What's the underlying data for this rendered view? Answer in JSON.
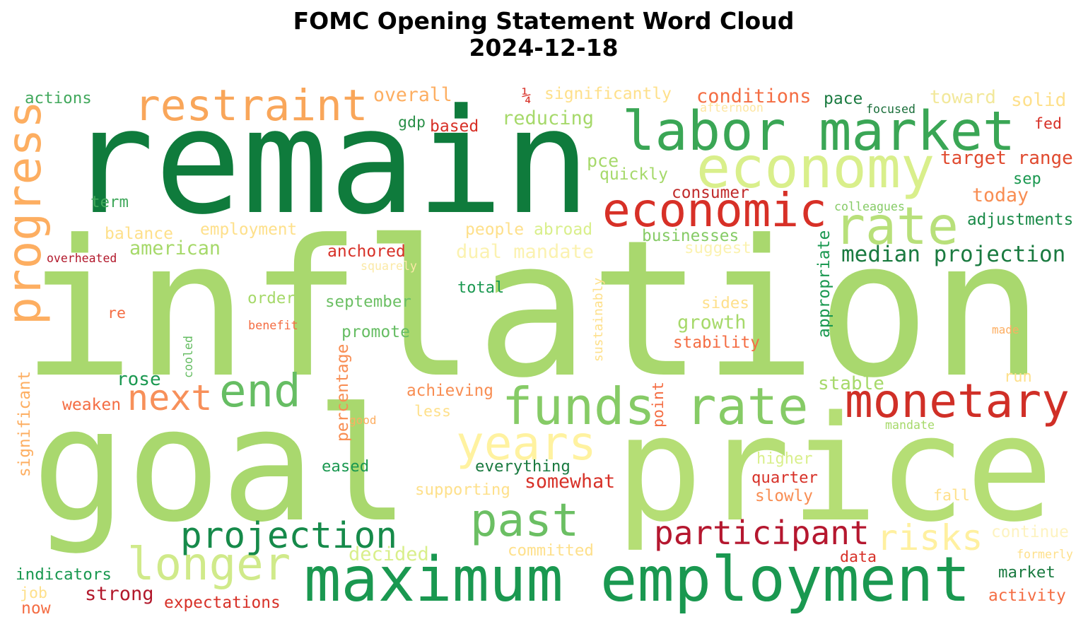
{
  "title": "FOMC Opening Statement Word Cloud",
  "subtitle": "2024-12-18",
  "words": [
    {
      "text": "inflation",
      "color": "#a9d86e"
    },
    {
      "text": "remain",
      "color": "#0f7b3c"
    },
    {
      "text": "goal",
      "color": "#a9d86e"
    },
    {
      "text": "price",
      "color": "#b5de75"
    },
    {
      "text": "maximum employment",
      "color": "#1a9850"
    },
    {
      "text": "labor market",
      "color": "#3aa655"
    },
    {
      "text": "economy",
      "color": "#d9ef8b"
    },
    {
      "text": "economic",
      "color": "#d73027"
    },
    {
      "text": "rate",
      "color": "#b8e07a"
    },
    {
      "text": "funds rate",
      "color": "#86cb66"
    },
    {
      "text": "monetary",
      "color": "#d02f27"
    },
    {
      "text": "years",
      "color": "#fff2a0"
    },
    {
      "text": "past",
      "color": "#6bbf63"
    },
    {
      "text": "restraint",
      "color": "#f9a65a"
    },
    {
      "text": "progress",
      "color": "#fdae61"
    },
    {
      "text": "end",
      "color": "#66bd63"
    },
    {
      "text": "next",
      "color": "#f7905a"
    },
    {
      "text": "longer",
      "color": "#d0ea8a"
    },
    {
      "text": "projection",
      "color": "#168a4a"
    },
    {
      "text": "participant",
      "color": "#b5172f"
    },
    {
      "text": "risks",
      "color": "#fff0a0"
    },
    {
      "text": "median projection",
      "color": "#1a7a40"
    },
    {
      "text": "target range",
      "color": "#e04a2f"
    },
    {
      "text": "conditions",
      "color": "#f46d43"
    },
    {
      "text": "overall",
      "color": "#fdae61"
    },
    {
      "text": "significantly",
      "color": "#fee08b"
    },
    {
      "text": "¼",
      "color": "#d73027"
    },
    {
      "text": "reducing",
      "color": "#a6d96a"
    },
    {
      "text": "actions",
      "color": "#41a85c"
    },
    {
      "text": "afternoon",
      "color": "#fee6a0"
    },
    {
      "text": "pace",
      "color": "#1a7a40"
    },
    {
      "text": "focused",
      "color": "#1a6e3a"
    },
    {
      "text": "toward",
      "color": "#f2e89a"
    },
    {
      "text": "solid",
      "color": "#fee08b"
    },
    {
      "text": "fed",
      "color": "#d73027"
    },
    {
      "text": "gdp",
      "color": "#2a9048"
    },
    {
      "text": "based",
      "color": "#d73027"
    },
    {
      "text": "pce",
      "color": "#a6d96a"
    },
    {
      "text": "quickly",
      "color": "#a6d96a"
    },
    {
      "text": "sep",
      "color": "#1a9850"
    },
    {
      "text": "today",
      "color": "#f88d52"
    },
    {
      "text": "term",
      "color": "#41a85c"
    },
    {
      "text": "consumer",
      "color": "#c02a2a"
    },
    {
      "text": "colleagues",
      "color": "#86cb66"
    },
    {
      "text": "adjustments",
      "color": "#1a8a48"
    },
    {
      "text": "balance",
      "color": "#fee08b"
    },
    {
      "text": "employment",
      "color": "#fee08b"
    },
    {
      "text": "people",
      "color": "#fee08b"
    },
    {
      "text": "abroad",
      "color": "#d9ef8b"
    },
    {
      "text": "businesses",
      "color": "#86cb66"
    },
    {
      "text": "appropriate",
      "color": "#1a9850"
    },
    {
      "text": "american",
      "color": "#a6d96a"
    },
    {
      "text": "overheated",
      "color": "#b2182b"
    },
    {
      "text": "anchored",
      "color": "#d73027"
    },
    {
      "text": "dual mandate",
      "color": "#fbf2b0"
    },
    {
      "text": "suggest",
      "color": "#fbf2b0"
    },
    {
      "text": "squarely",
      "color": "#fbe9a6"
    },
    {
      "text": "total",
      "color": "#1a9850"
    },
    {
      "text": "order",
      "color": "#a6d96a"
    },
    {
      "text": "september",
      "color": "#6bbf63"
    },
    {
      "text": "sides",
      "color": "#fee08b"
    },
    {
      "text": "sustainably",
      "color": "#fee08b"
    },
    {
      "text": "re",
      "color": "#f46d43"
    },
    {
      "text": "benefit",
      "color": "#f46d43"
    },
    {
      "text": "growth",
      "color": "#a6d96a"
    },
    {
      "text": "promote",
      "color": "#66bd63"
    },
    {
      "text": "stability",
      "color": "#f46d43"
    },
    {
      "text": "made",
      "color": "#fdae61"
    },
    {
      "text": "cooled",
      "color": "#66bd63"
    },
    {
      "text": "percentage",
      "color": "#f88d52"
    },
    {
      "text": "significant",
      "color": "#fdae61"
    },
    {
      "text": "rose",
      "color": "#1a9850"
    },
    {
      "text": "run",
      "color": "#fee08b"
    },
    {
      "text": "stable",
      "color": "#a6d96a"
    },
    {
      "text": "point",
      "color": "#f46d43"
    },
    {
      "text": "achieving",
      "color": "#f88d52"
    },
    {
      "text": "weaken",
      "color": "#f46d43"
    },
    {
      "text": "less",
      "color": "#fee08b"
    },
    {
      "text": "good",
      "color": "#fdae61"
    },
    {
      "text": "mandate",
      "color": "#a6d96a"
    },
    {
      "text": "higher",
      "color": "#d9ef8b"
    },
    {
      "text": "eased",
      "color": "#1a9850"
    },
    {
      "text": "everything",
      "color": "#1a7a40"
    },
    {
      "text": "somewhat",
      "color": "#d73027"
    },
    {
      "text": "quarter",
      "color": "#d73027"
    },
    {
      "text": "supporting",
      "color": "#fee08b"
    },
    {
      "text": "slowly",
      "color": "#f88d52"
    },
    {
      "text": "fall",
      "color": "#fee08b"
    },
    {
      "text": "continue",
      "color": "#fdf3c0"
    },
    {
      "text": "decided",
      "color": "#d9ef8b"
    },
    {
      "text": "committed",
      "color": "#fee08b"
    },
    {
      "text": "formerly",
      "color": "#fee08b"
    },
    {
      "text": "data",
      "color": "#d73027"
    },
    {
      "text": "indicators",
      "color": "#1a9850"
    },
    {
      "text": "market",
      "color": "#1a7a40"
    },
    {
      "text": "job",
      "color": "#fee08b"
    },
    {
      "text": "strong",
      "color": "#b2182b"
    },
    {
      "text": "expectations",
      "color": "#d73027"
    },
    {
      "text": "activity",
      "color": "#f46d43"
    },
    {
      "text": "now",
      "color": "#f46d43"
    }
  ]
}
